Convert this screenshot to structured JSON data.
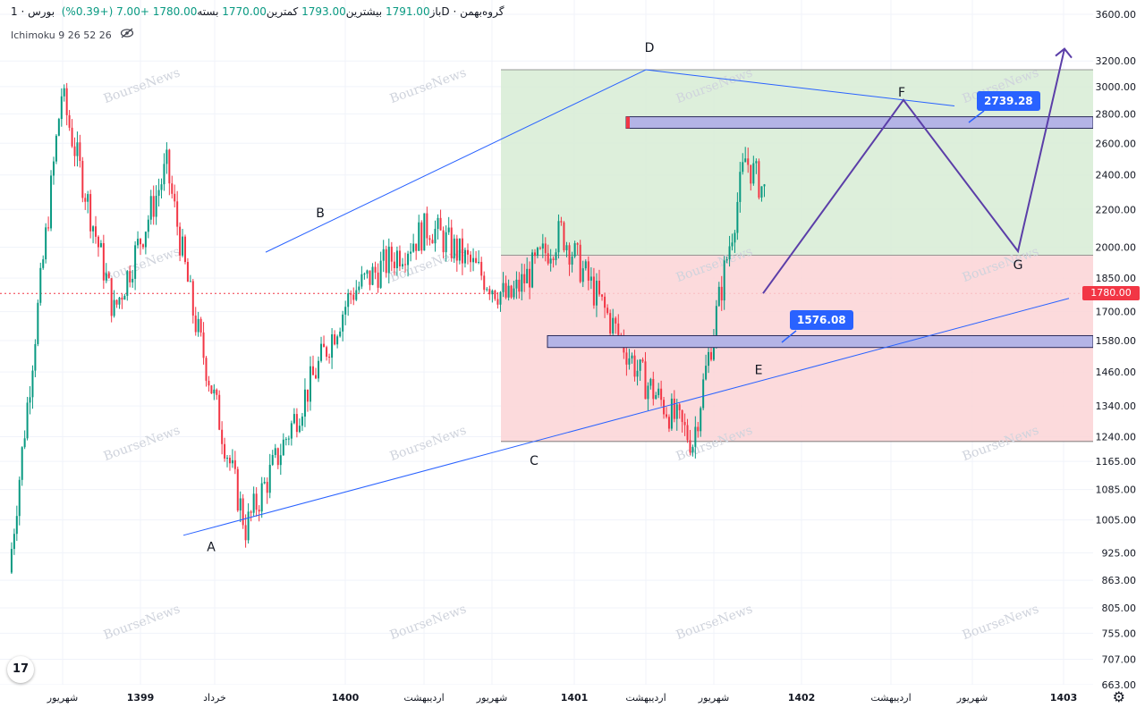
{
  "ohlc": {
    "symbol": "گروه‌بهمن",
    "interval": "1D",
    "exchange": "بورس",
    "open_label": "باز",
    "open": "1791.00",
    "high_label": "بیشترین",
    "high": "1793.00",
    "low_label": "کمترین",
    "low": "1770.00",
    "close_label": "بسته",
    "close": "1780.00",
    "change": "+7.00",
    "change_pct": "(+0.39%)"
  },
  "indicator": {
    "label": "Ichimoku 9 26 52 26",
    "icon": "eye-off-icon"
  },
  "last_price_tag": "1780.00",
  "callouts": {
    "upper": "2739.28",
    "lower": "1576.08"
  },
  "logo": {
    "text": "17"
  },
  "watermark": "BourseNews",
  "chart_data": {
    "type": "candlestick",
    "title": "",
    "y_axis": {
      "scale": "log",
      "ticks": [
        "3600.00",
        "3200.00",
        "3000.00",
        "2800.00",
        "2600.00",
        "2400.00",
        "2200.00",
        "2000.00",
        "1850.00",
        "1700.00",
        "1580.00",
        "1460.00",
        "1340.00",
        "1240.00",
        "1165.00",
        "1085.00",
        "1005.00",
        "925.00",
        "863.00",
        "805.00",
        "755.00",
        "707.00",
        "663.00"
      ],
      "range": [
        663,
        3600
      ],
      "last_price": 1780
    },
    "x_axis": {
      "ticks": [
        {
          "label": "شهریور",
          "bold": false
        },
        {
          "label": "1399",
          "bold": true
        },
        {
          "label": "خرداد",
          "bold": false
        },
        {
          "label": "1400",
          "bold": true
        },
        {
          "label": "اردیبهشت",
          "bold": false
        },
        {
          "label": "شهریور",
          "bold": false
        },
        {
          "label": "1401",
          "bold": true
        },
        {
          "label": "اردیبهشت",
          "bold": false
        },
        {
          "label": "شهریور",
          "bold": false
        },
        {
          "label": "1402",
          "bold": true
        },
        {
          "label": "اردیبهشت",
          "bold": false
        },
        {
          "label": "شهریور",
          "bold": false
        },
        {
          "label": "1403",
          "bold": true
        }
      ]
    },
    "wave_points": [
      {
        "label": "A",
        "price": 985
      },
      {
        "label": "B",
        "price": 2110
      },
      {
        "label": "C",
        "price": 1225
      },
      {
        "label": "D",
        "price": 3130
      },
      {
        "label": "E",
        "price": 1540
      },
      {
        "label": "F",
        "price": 2900
      },
      {
        "label": "G",
        "price": 1980
      }
    ],
    "zones": [
      {
        "name": "profit",
        "from": 1960,
        "to": 3130,
        "color": "#d7ecd5"
      },
      {
        "name": "loss",
        "from": 1225,
        "to": 1960,
        "color": "#fbd3d6"
      }
    ],
    "levels": [
      {
        "name": "resistance",
        "from": 2700,
        "to": 2780
      },
      {
        "name": "support",
        "from": 1553,
        "to": 1600
      }
    ],
    "price_path": [
      {
        "t": "1398-06",
        "price": 880
      },
      {
        "t": "1398-08",
        "price": 2950
      },
      {
        "t": "1398-10",
        "price": 1700
      },
      {
        "t": "1398-12",
        "price": 2450
      },
      {
        "t": "1399-01",
        "price": 1700
      },
      {
        "t": "1399-03",
        "price": 985
      },
      {
        "t": "1399-07",
        "price": 1780
      },
      {
        "t": "1399-10",
        "price": 2110
      },
      {
        "t": "1400-01",
        "price": 1750
      },
      {
        "t": "1400-03",
        "price": 2080
      },
      {
        "t": "1400-06",
        "price": 1450
      },
      {
        "t": "1400-08",
        "price": 1225
      },
      {
        "t": "1400-10",
        "price": 2500
      },
      {
        "t": "1401-01",
        "price": 1780
      },
      {
        "t": "1401-02",
        "price": 3130
      },
      {
        "t": "1401-05",
        "price": 1950
      },
      {
        "t": "1401-07",
        "price": 1540
      },
      {
        "t": "1401-08",
        "price": 1780
      }
    ],
    "colors": {
      "up": "#089981",
      "down": "#f23645",
      "trendline": "#2962ff",
      "wave": "#5b3ea8",
      "level_fill": "#b4b4e6"
    }
  }
}
